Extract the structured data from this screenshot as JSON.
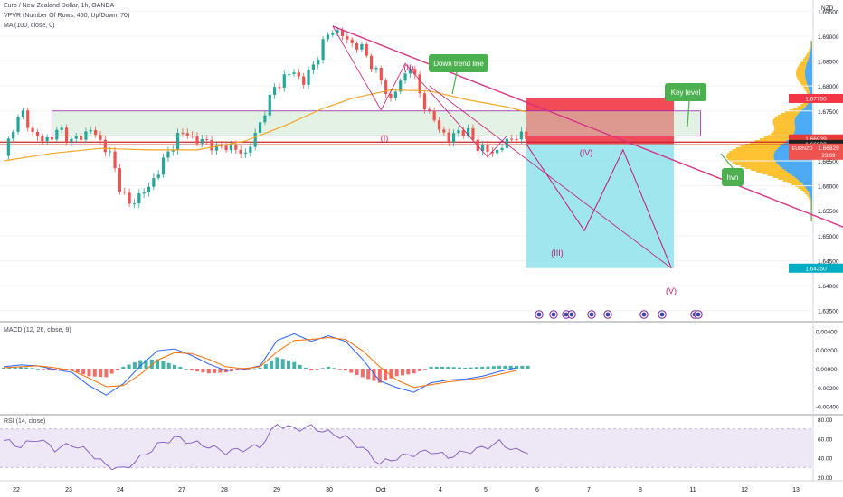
{
  "colors": {
    "up": "#26a69a",
    "down": "#ef5350",
    "ma": "#f5a623",
    "trend": "#d63384",
    "wave": "#c2186c",
    "macd_line": "#2962ff",
    "signal_line": "#ff6d00",
    "rsi_line": "#7e57c2",
    "rsi_band": "#ede7f6",
    "stop": "#f23645",
    "target": "#80deea",
    "keybox_fill": "#c8e6c9",
    "keybox_stroke": "#9c27b0",
    "label_bg": "#4caf50",
    "vp_blue": "#2196f3",
    "vp_orange": "#ffb300"
  },
  "header": {
    "symbol_line": "Euro / New Zealand Dollar, 1h, OANDA",
    "vpvr_line": "VPVR (Number Of Rows, 450, Up/Down, 70)",
    "ma_line": "MA (100, close, 0)"
  },
  "currency": "NZD",
  "price_badges": {
    "upper": "1.66939",
    "mid": "1.66900",
    "symbol": "EURNZD",
    "current": "1.66829",
    "countdown": "23:09",
    "key_level": "1.67750",
    "target": "1.64350"
  },
  "annotations": {
    "down_trend": "Down trend line",
    "key_level": "Key level",
    "hvn": "hvn",
    "wave_1": "(I)",
    "wave_2": "(II)",
    "wave_3": "(III)",
    "wave_4": "(IV)",
    "wave_5": "(V)"
  },
  "x_axis_labels": [
    "22",
    "23",
    "24",
    "27",
    "28",
    "29",
    "30",
    "Oct",
    "4",
    "5",
    "6",
    "7",
    "8",
    "11",
    "12",
    "13"
  ],
  "chart_data": [
    {
      "type": "candlestick",
      "title": "Euro / New Zealand Dollar, 1h, OANDA",
      "y_ticks": [
        "1.69500",
        "1.69000",
        "1.68500",
        "1.68000",
        "1.67500",
        "1.67000",
        "1.66500",
        "1.66000",
        "1.65500",
        "1.65000",
        "1.64500",
        "1.64000",
        "1.63500"
      ],
      "ylim": [
        1.6335,
        1.6965
      ],
      "close_path": [
        [
          0,
          1.666
        ],
        [
          2,
          1.672
        ],
        [
          4,
          1.6745
        ],
        [
          6,
          1.6705
        ],
        [
          8,
          1.669
        ],
        [
          10,
          1.67
        ],
        [
          12,
          1.6712
        ],
        [
          14,
          1.6688
        ],
        [
          16,
          1.67
        ],
        [
          18,
          1.6712
        ],
        [
          20,
          1.669
        ],
        [
          22,
          1.6662
        ],
        [
          24,
          1.66
        ],
        [
          26,
          1.656
        ],
        [
          28,
          1.6582
        ],
        [
          30,
          1.6595
        ],
        [
          32,
          1.6632
        ],
        [
          34,
          1.6665
        ],
        [
          36,
          1.67
        ],
        [
          38,
          1.6705
        ],
        [
          40,
          1.6688
        ],
        [
          42,
          1.669
        ],
        [
          44,
          1.6672
        ],
        [
          46,
          1.6682
        ],
        [
          48,
          1.667
        ],
        [
          50,
          1.6665
        ],
        [
          52,
          1.67
        ],
        [
          54,
          1.6752
        ],
        [
          56,
          1.6795
        ],
        [
          58,
          1.6818
        ],
        [
          60,
          1.6828
        ],
        [
          62,
          1.6808
        ],
        [
          64,
          1.6842
        ],
        [
          66,
          1.6885
        ],
        [
          68,
          1.6915
        ],
        [
          70,
          1.69
        ],
        [
          72,
          1.6885
        ],
        [
          74,
          1.6875
        ],
        [
          76,
          1.6845
        ],
        [
          78,
          1.681
        ],
        [
          80,
          1.6772
        ],
        [
          82,
          1.6808
        ],
        [
          84,
          1.6842
        ],
        [
          86,
          1.6785
        ],
        [
          88,
          1.6742
        ],
        [
          90,
          1.6718
        ],
        [
          92,
          1.669
        ],
        [
          94,
          1.6712
        ],
        [
          96,
          1.6705
        ],
        [
          98,
          1.668
        ],
        [
          100,
          1.6668
        ],
        [
          102,
          1.667
        ],
        [
          104,
          1.6688
        ],
        [
          106,
          1.6702
        ],
        [
          108,
          1.6694
        ]
      ],
      "ma100": [
        [
          0,
          1.665
        ],
        [
          10,
          1.6665
        ],
        [
          20,
          1.6675
        ],
        [
          30,
          1.6672
        ],
        [
          40,
          1.6672
        ],
        [
          50,
          1.669
        ],
        [
          58,
          1.672
        ],
        [
          66,
          1.6755
        ],
        [
          72,
          1.6775
        ],
        [
          80,
          1.6792
        ],
        [
          88,
          1.679
        ],
        [
          96,
          1.6772
        ],
        [
          104,
          1.6758
        ],
        [
          108,
          1.6748
        ]
      ],
      "trade_setup": {
        "entry": 1.6684,
        "stop": 1.6775,
        "target": 1.6435,
        "key_zone": [
          1.67,
          1.675
        ],
        "hvn_level": 1.6684
      },
      "wave_projection": [
        [
          108,
          1.6684
        ],
        [
          120,
          1.651
        ],
        [
          128,
          1.6672
        ],
        [
          138,
          1.6435
        ]
      ],
      "trend_line": [
        [
          68,
          1.692
        ],
        [
          176,
          1.6508
        ]
      ]
    },
    {
      "type": "line",
      "title": "MACD (12, 26, close, 9)",
      "y_ticks": [
        "0.00400",
        "0.00200",
        "0.00000",
        "-0.00200",
        "-0.00400"
      ],
      "ylim": [
        -0.0046,
        0.0046
      ],
      "series": [
        {
          "name": "MACD",
          "values": [
            0.0002,
            0.0004,
            0.0003,
            -0.0001,
            -0.0004,
            -0.0018,
            -0.0028,
            -0.0016,
            0.0003,
            0.0019,
            0.0021,
            0.0014,
            0.0005,
            -0.0002,
            -0.0001,
            0.0003,
            0.003,
            0.0037,
            0.0029,
            0.0035,
            0.0029,
            0.001,
            -0.0013,
            -0.002,
            -0.0025,
            -0.0015,
            -0.0012,
            -0.0011,
            -0.0008,
            -0.0003,
            0.0001
          ]
        },
        {
          "name": "Signal",
          "values": [
            0.0001,
            0.0002,
            0.0003,
            0.0001,
            -0.0002,
            -0.001,
            -0.0019,
            -0.0018,
            -0.0006,
            0.0009,
            0.0017,
            0.0016,
            0.001,
            0.0002,
            0.0,
            0.0002,
            0.0018,
            0.003,
            0.0031,
            0.0033,
            0.0031,
            0.0019,
            0.0002,
            -0.0012,
            -0.002,
            -0.0017,
            -0.0014,
            -0.0012,
            -0.001,
            -0.0006,
            -0.0002
          ]
        }
      ]
    },
    {
      "type": "line",
      "title": "RSI (14, close)",
      "y_ticks": [
        "80.00",
        "60.00",
        "40.00",
        "20.00"
      ],
      "ylim": [
        18,
        82
      ],
      "band": [
        30,
        70
      ],
      "series": [
        {
          "name": "RSI",
          "values": [
            58,
            52,
            60,
            49,
            54,
            46,
            32,
            28,
            40,
            53,
            61,
            56,
            52,
            46,
            49,
            52,
            75,
            70,
            72,
            66,
            61,
            50,
            34,
            40,
            44,
            47,
            41,
            46,
            50,
            56,
            47
          ]
        }
      ]
    }
  ]
}
